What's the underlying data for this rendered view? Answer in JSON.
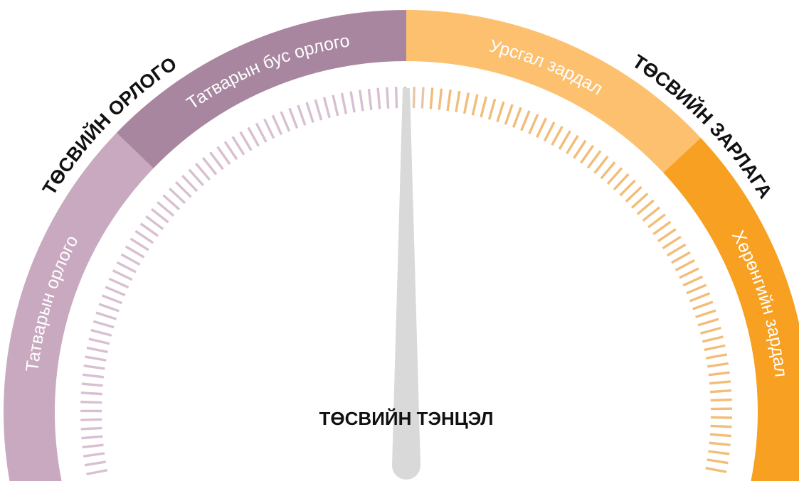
{
  "left_title": "ТӨСВИЙН ОРЛОГО",
  "right_title": "ТӨСВИЙН ЗАРЛАГА",
  "center_label": "ТӨСВИЙН ТЭНЦЭЛ",
  "segments": [
    {
      "label": "Татварын орлого"
    },
    {
      "label": "Татварын бус орлого"
    },
    {
      "label": "Урсгал зардал"
    },
    {
      "label": "Хөрөнгийн зардал"
    }
  ]
}
